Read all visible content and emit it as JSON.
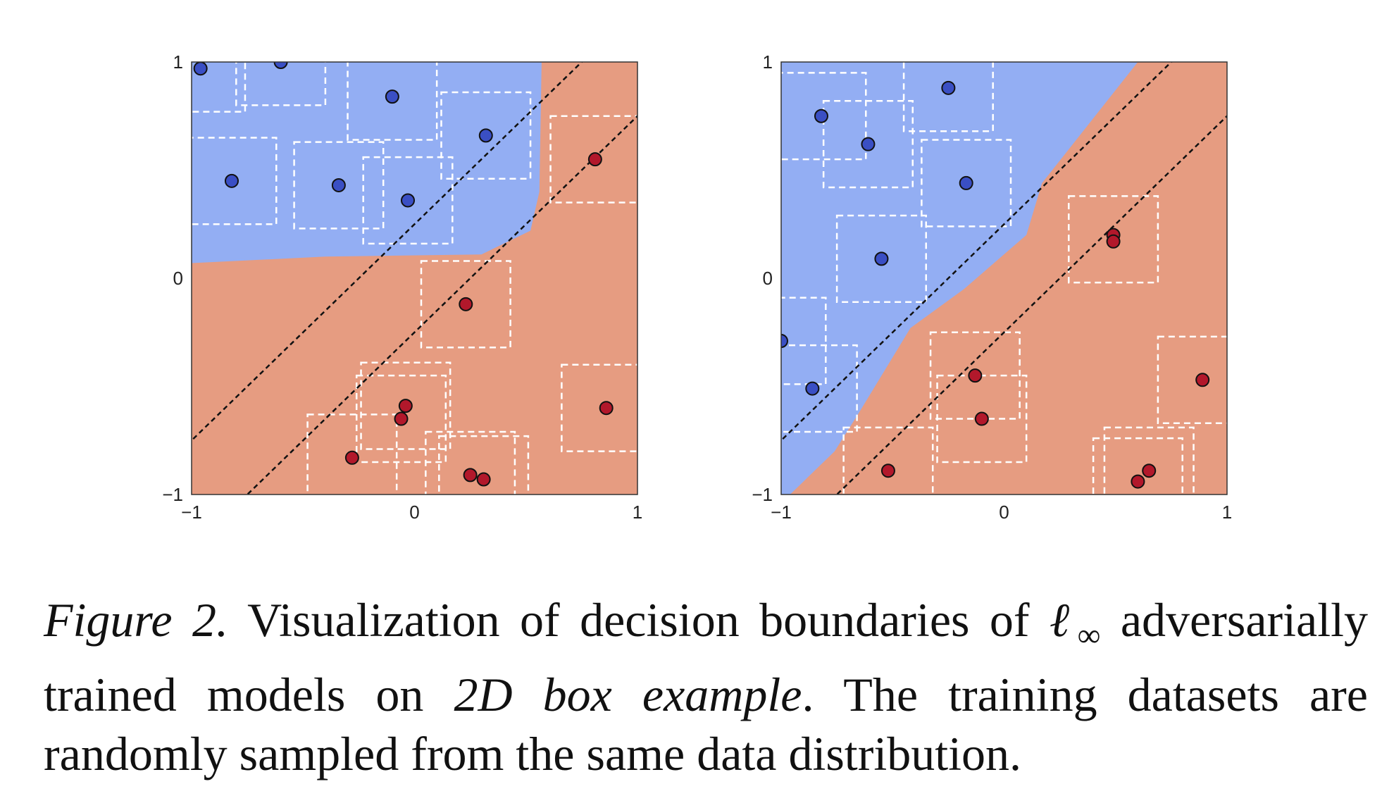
{
  "chart_data": [
    {
      "type": "scatter",
      "xlim": [
        -1,
        1
      ],
      "ylim": [
        -1,
        1
      ],
      "xticks": [
        "−1",
        "0",
        "1"
      ],
      "yticks": [
        "−1",
        "0",
        "1"
      ],
      "grid": false,
      "colors": {
        "blue_region": "#93aef3",
        "red_region": "#e69c81",
        "blue_point": "#3a4fc4",
        "red_point": "#b2182b",
        "box": "#ffffff"
      },
      "series": [
        {
          "class": "blue",
          "points": [
            [
              -0.96,
              0.97
            ],
            [
              -0.6,
              1.0
            ],
            [
              -0.1,
              0.84
            ],
            [
              0.32,
              0.66
            ],
            [
              -0.82,
              0.45
            ],
            [
              -0.34,
              0.43
            ],
            [
              -0.03,
              0.36
            ]
          ]
        },
        {
          "class": "red",
          "points": [
            [
              0.81,
              0.55
            ],
            [
              0.23,
              -0.12
            ],
            [
              -0.04,
              -0.59
            ],
            [
              -0.06,
              -0.65
            ],
            [
              -0.28,
              -0.83
            ],
            [
              0.25,
              -0.91
            ],
            [
              0.31,
              -0.93
            ],
            [
              0.86,
              -0.6
            ]
          ]
        }
      ],
      "boxes_center_half": [
        [
          -0.96,
          0.97
        ],
        [
          -0.6,
          1.0
        ],
        [
          -0.1,
          0.84
        ],
        [
          0.32,
          0.66
        ],
        [
          -0.82,
          0.45
        ],
        [
          -0.34,
          0.43
        ],
        [
          -0.03,
          0.36
        ],
        [
          0.81,
          0.55
        ],
        [
          0.23,
          -0.12
        ],
        [
          -0.04,
          -0.59
        ],
        [
          -0.06,
          -0.65
        ],
        [
          -0.28,
          -0.83
        ],
        [
          0.25,
          -0.91
        ],
        [
          0.31,
          -0.93
        ],
        [
          0.86,
          -0.6
        ]
      ],
      "box_half_width": 0.2,
      "dashed_lines": [
        {
          "intercept": 0.25
        },
        {
          "intercept": -0.25
        }
      ],
      "boundary": [
        [
          -1,
          0.07
        ],
        [
          -0.4,
          0.1
        ],
        [
          0.3,
          0.11
        ],
        [
          0.52,
          0.22
        ],
        [
          0.56,
          0.4
        ],
        [
          0.57,
          1.0
        ]
      ]
    },
    {
      "type": "scatter",
      "xlim": [
        -1,
        1
      ],
      "ylim": [
        -1,
        1
      ],
      "xticks": [
        "−1",
        "0",
        "1"
      ],
      "yticks": [
        "−1",
        "0",
        "1"
      ],
      "grid": false,
      "colors": {
        "blue_region": "#93aef3",
        "red_region": "#e69c81",
        "blue_point": "#3a4fc4",
        "red_point": "#b2182b",
        "box": "#ffffff"
      },
      "series": [
        {
          "class": "blue",
          "points": [
            [
              -0.25,
              0.88
            ],
            [
              -0.82,
              0.75
            ],
            [
              -0.61,
              0.62
            ],
            [
              -0.17,
              0.44
            ],
            [
              -0.55,
              0.09
            ],
            [
              -1.0,
              -0.29
            ],
            [
              -0.86,
              -0.51
            ]
          ]
        },
        {
          "class": "red",
          "points": [
            [
              0.49,
              0.2
            ],
            [
              0.49,
              0.17
            ],
            [
              -0.13,
              -0.45
            ],
            [
              -0.1,
              -0.65
            ],
            [
              -0.52,
              -0.89
            ],
            [
              0.65,
              -0.89
            ],
            [
              0.6,
              -0.94
            ],
            [
              0.89,
              -0.47
            ]
          ]
        }
      ],
      "boxes_center_half": [
        [
          -0.25,
          0.88
        ],
        [
          -0.82,
          0.75
        ],
        [
          -0.61,
          0.62
        ],
        [
          -0.17,
          0.44
        ],
        [
          -0.55,
          0.09
        ],
        [
          -1.0,
          -0.29
        ],
        [
          -0.86,
          -0.51
        ],
        [
          0.49,
          0.18
        ],
        [
          -0.13,
          -0.45
        ],
        [
          -0.1,
          -0.65
        ],
        [
          -0.52,
          -0.89
        ],
        [
          0.65,
          -0.89
        ],
        [
          0.6,
          -0.94
        ],
        [
          0.89,
          -0.47
        ]
      ],
      "box_half_width": 0.2,
      "dashed_lines": [
        {
          "intercept": 0.25
        },
        {
          "intercept": -0.25
        }
      ],
      "boundary": [
        [
          -0.96,
          -1.0
        ],
        [
          -0.76,
          -0.8
        ],
        [
          -0.65,
          -0.62
        ],
        [
          -0.42,
          -0.23
        ],
        [
          -0.18,
          -0.05
        ],
        [
          0.1,
          0.2
        ],
        [
          0.17,
          0.44
        ],
        [
          0.6,
          1.0
        ]
      ]
    }
  ],
  "caption": {
    "figure_label": "Figure 2.",
    "line1_rest": "Visualization of decision boundaries of",
    "norm_symbol": "ℓ",
    "norm_sub": "∞",
    "line1_end": "adversarially",
    "line2_a": "trained models on",
    "line2_italic": "2D box example",
    "line2_b": ".  The training datasets are",
    "line3": "randomly sampled from the same data distribution."
  }
}
